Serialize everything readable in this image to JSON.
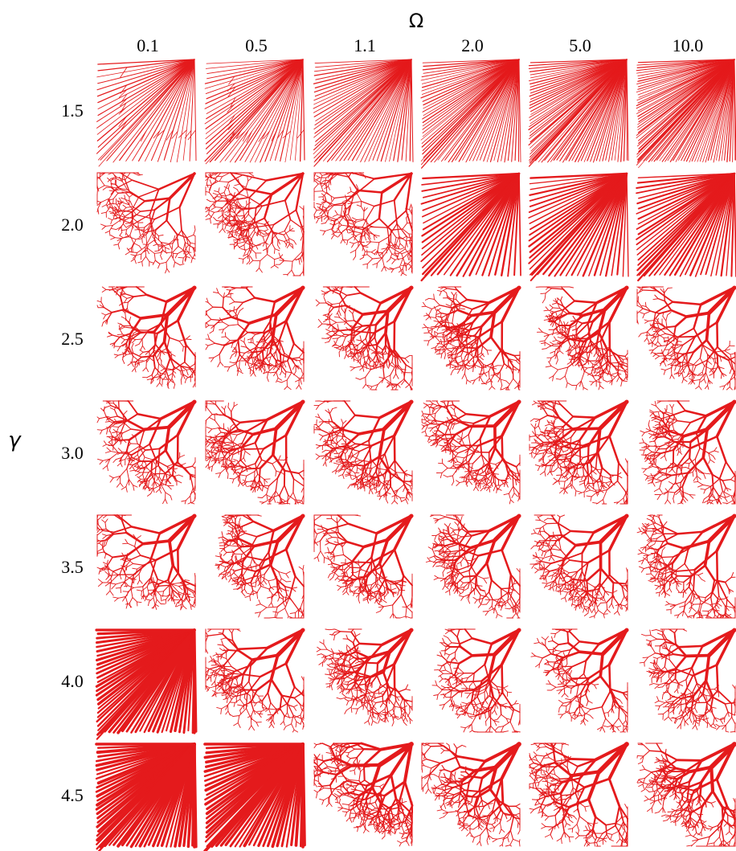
{
  "figure": {
    "column_axis_title": "Ω",
    "row_axis_title": "γ",
    "columns": [
      {
        "omega": "0.1"
      },
      {
        "omega": "0.5"
      },
      {
        "omega": "1.1"
      },
      {
        "omega": "2.0"
      },
      {
        "omega": "5.0"
      },
      {
        "omega": "10.0"
      }
    ],
    "rows": [
      {
        "gamma": "1.5"
      },
      {
        "gamma": "2.0"
      },
      {
        "gamma": "2.5"
      },
      {
        "gamma": "3.0"
      },
      {
        "gamma": "3.5"
      },
      {
        "gamma": "4.0"
      },
      {
        "gamma": "4.5"
      }
    ],
    "network_color": "#e41a1c"
  }
}
